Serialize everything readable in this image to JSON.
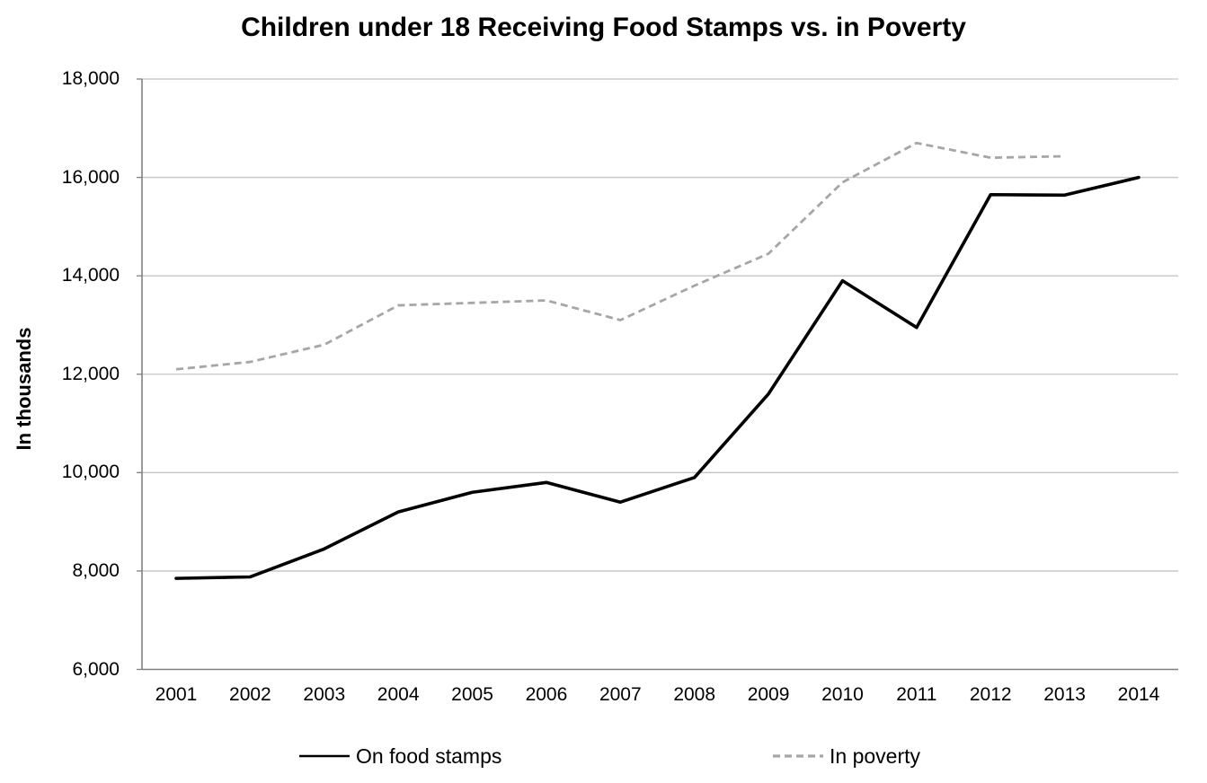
{
  "chart_data": {
    "type": "line",
    "title": "Children under 18 Receiving Food Stamps vs. in Poverty",
    "ylabel": "In thousands",
    "xlabel": "",
    "ylim": [
      6000,
      18000
    ],
    "ytick_step": 2000,
    "ytick_labels": [
      "6,000",
      "8,000",
      "10,000",
      "12,000",
      "14,000",
      "16,000",
      "18,000"
    ],
    "grid": true,
    "legend_position": "bottom",
    "categories": [
      "2001",
      "2002",
      "2003",
      "2004",
      "2005",
      "2006",
      "2007",
      "2008",
      "2009",
      "2010",
      "2011",
      "2012",
      "2013",
      "2014"
    ],
    "series": [
      {
        "name": "On food stamps",
        "line_style": "solid",
        "color": "#000000",
        "values": [
          7850,
          7880,
          8450,
          9200,
          9600,
          9800,
          9400,
          9900,
          11600,
          13900,
          12950,
          15650,
          15640,
          16000
        ]
      },
      {
        "name": "In poverty",
        "line_style": "dashed",
        "color": "#a6a6a6",
        "values": [
          12100,
          12250,
          12600,
          13400,
          13450,
          13500,
          13100,
          13800,
          14450,
          15900,
          16700,
          16400,
          16430,
          null
        ]
      }
    ]
  },
  "colors": {
    "background": "#ffffff",
    "axis_line": "#808080",
    "gridline": "#c4c4c4",
    "text": "#000000",
    "series_on_food_stamps": "#000000",
    "series_in_poverty": "#a6a6a6"
  }
}
